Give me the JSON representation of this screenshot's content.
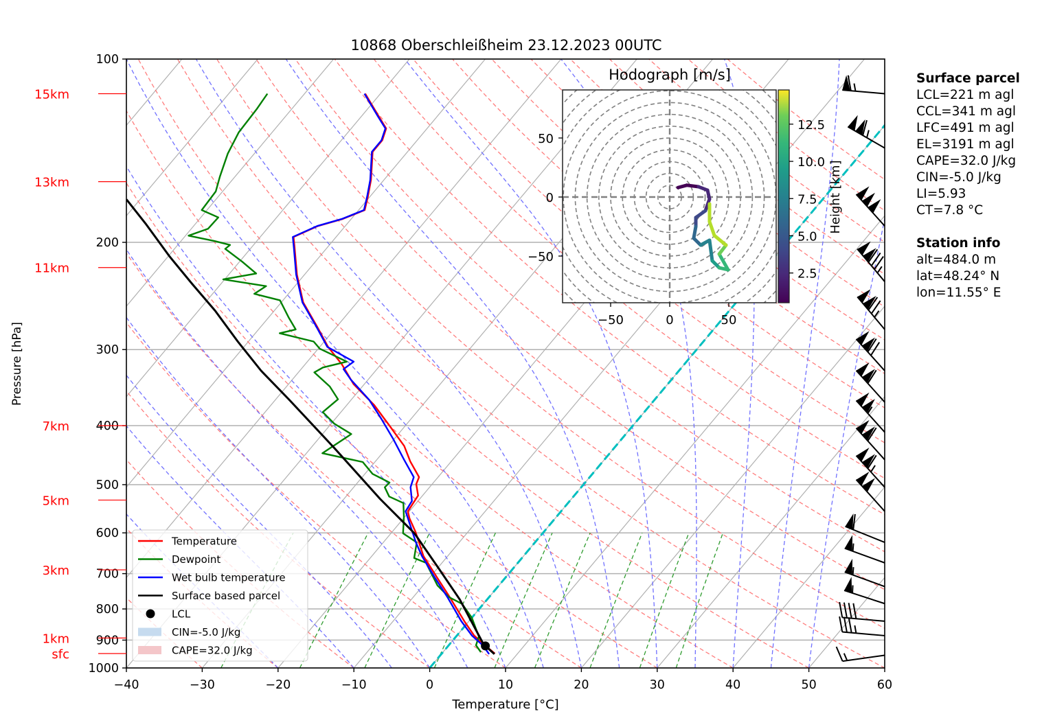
{
  "chart_data": {
    "type": "line",
    "title": "10868 Oberschleißheim 23.12.2023 00UTC",
    "xlabel": "Temperature [°C]",
    "ylabel": "Pressure [hPa]",
    "xlim": [
      -40,
      60
    ],
    "ylim": [
      1000,
      100
    ],
    "yscale": "log",
    "skew": "skew-T log-P",
    "grid": true,
    "x_ticks": [
      -40,
      -30,
      -20,
      -10,
      0,
      10,
      20,
      30,
      40,
      50,
      60
    ],
    "y_ticks": [
      100,
      200,
      300,
      400,
      500,
      600,
      700,
      800,
      900,
      1000
    ],
    "height_markers": [
      {
        "label": "15km",
        "pressure": 114
      },
      {
        "label": "13km",
        "pressure": 159
      },
      {
        "label": "11km",
        "pressure": 220
      },
      {
        "label": "7km",
        "pressure": 400
      },
      {
        "label": "5km",
        "pressure": 530
      },
      {
        "label": "3km",
        "pressure": 690
      },
      {
        "label": "1km",
        "pressure": 893
      },
      {
        "label": "sfc",
        "pressure": 947
      }
    ],
    "series": [
      {
        "name": "Temperature",
        "color": "#ff0000",
        "points": [
          [
            947,
            7.0
          ],
          [
            918,
            4.8
          ],
          [
            885,
            2.3
          ],
          [
            838,
            -0.6
          ],
          [
            765,
            -5.2
          ],
          [
            708,
            -9.2
          ],
          [
            655,
            -13.2
          ],
          [
            598,
            -16.9
          ],
          [
            568,
            -19.2
          ],
          [
            553,
            -20.2
          ],
          [
            521,
            -20.6
          ],
          [
            499,
            -22.1
          ],
          [
            486,
            -22.5
          ],
          [
            458,
            -25.4
          ],
          [
            432,
            -27.9
          ],
          [
            400,
            -32.1
          ],
          [
            370,
            -36.4
          ],
          [
            342,
            -41.4
          ],
          [
            317,
            -45.2
          ],
          [
            297,
            -48.9
          ],
          [
            275,
            -52.6
          ],
          [
            251,
            -57.1
          ],
          [
            226,
            -61.0
          ],
          [
            204,
            -64.3
          ],
          [
            196,
            -65.6
          ],
          [
            188,
            -63.6
          ],
          [
            183,
            -61.1
          ],
          [
            177,
            -59.2
          ],
          [
            168,
            -60.3
          ],
          [
            158,
            -61.7
          ],
          [
            142,
            -64.6
          ],
          [
            136,
            -64.6
          ],
          [
            130,
            -65.4
          ],
          [
            124,
            -67.8
          ],
          [
            114,
            -72.0
          ]
        ]
      },
      {
        "name": "Dewpoint",
        "color": "#008000",
        "points": [
          [
            942,
            5.0
          ],
          [
            918,
            3.6
          ],
          [
            888,
            3.0
          ],
          [
            827,
            0.0
          ],
          [
            785,
            -2.8
          ],
          [
            765,
            -5.3
          ],
          [
            732,
            -8.1
          ],
          [
            672,
            -12.1
          ],
          [
            660,
            -14.2
          ],
          [
            622,
            -15.6
          ],
          [
            601,
            -18.4
          ],
          [
            565,
            -20.1
          ],
          [
            536,
            -21.7
          ],
          [
            523,
            -24.3
          ],
          [
            505,
            -25.9
          ],
          [
            496,
            -25.8
          ],
          [
            480,
            -29.0
          ],
          [
            459,
            -31.6
          ],
          [
            444,
            -37.9
          ],
          [
            413,
            -36.2
          ],
          [
            397,
            -39.6
          ],
          [
            380,
            -42.4
          ],
          [
            362,
            -41.8
          ],
          [
            345,
            -44.3
          ],
          [
            327,
            -47.9
          ],
          [
            321,
            -47.3
          ],
          [
            314,
            -44.8
          ],
          [
            299,
            -49.8
          ],
          [
            291,
            -51.4
          ],
          [
            282,
            -56.8
          ],
          [
            278,
            -55.1
          ],
          [
            266,
            -57.3
          ],
          [
            249,
            -60.4
          ],
          [
            243,
            -64.5
          ],
          [
            236,
            -63.8
          ],
          [
            230,
            -70.2
          ],
          [
            225,
            -66.5
          ],
          [
            215,
            -69.7
          ],
          [
            205,
            -73.3
          ],
          [
            202,
            -73.1
          ],
          [
            199,
            -75.6
          ],
          [
            195,
            -79.6
          ],
          [
            190,
            -77.8
          ],
          [
            182,
            -77.7
          ],
          [
            177,
            -80.7
          ],
          [
            165,
            -80.9
          ],
          [
            156,
            -82.0
          ],
          [
            143,
            -83.5
          ],
          [
            132,
            -84.4
          ],
          [
            121,
            -84.6
          ],
          [
            114,
            -84.9
          ]
        ]
      },
      {
        "name": "Wet bulb temperature",
        "color": "#0000ff",
        "points": [
          [
            949,
            6.3
          ],
          [
            918,
            4.5
          ],
          [
            885,
            2.0
          ],
          [
            838,
            -1.0
          ],
          [
            765,
            -5.5
          ],
          [
            708,
            -9.5
          ],
          [
            655,
            -13.4
          ],
          [
            622,
            -15.7
          ],
          [
            553,
            -20.5
          ],
          [
            532,
            -20.8
          ],
          [
            505,
            -22.5
          ],
          [
            486,
            -23.2
          ],
          [
            455,
            -26.4
          ],
          [
            421,
            -30.1
          ],
          [
            390,
            -33.9
          ],
          [
            363,
            -37.6
          ],
          [
            336,
            -42.3
          ],
          [
            323,
            -44.4
          ],
          [
            314,
            -43.9
          ],
          [
            297,
            -49.0
          ],
          [
            275,
            -52.7
          ],
          [
            251,
            -57.2
          ],
          [
            226,
            -61.1
          ],
          [
            204,
            -64.4
          ],
          [
            196,
            -65.7
          ],
          [
            188,
            -63.7
          ],
          [
            183,
            -61.2
          ],
          [
            177,
            -59.3
          ],
          [
            168,
            -60.4
          ],
          [
            158,
            -61.8
          ],
          [
            142,
            -64.7
          ],
          [
            136,
            -64.7
          ],
          [
            130,
            -65.5
          ],
          [
            124,
            -67.9
          ],
          [
            114,
            -72.1
          ]
        ]
      },
      {
        "name": "Surface based parcel",
        "color": "#000000",
        "points": [
          [
            949,
            7.0
          ],
          [
            920,
            4.9
          ],
          [
            911,
            4.3
          ],
          [
            772,
            -3.6
          ],
          [
            684,
            -10.0
          ],
          [
            601,
            -16.9
          ],
          [
            528,
            -25.2
          ],
          [
            436,
            -36.8
          ],
          [
            362,
            -48.3
          ],
          [
            325,
            -55.1
          ],
          [
            291,
            -61.4
          ],
          [
            259,
            -67.8
          ],
          [
            234,
            -73.8
          ],
          [
            211,
            -79.8
          ],
          [
            187,
            -86.4
          ],
          [
            170,
            -91.8
          ]
        ]
      }
    ],
    "lcl": {
      "label": "LCL",
      "pressure": 920,
      "temperature": 4.9
    },
    "freezing_line": {
      "temperature": 0,
      "color": "#00bfbf"
    },
    "legend": {
      "position": "lower-left",
      "entries": [
        {
          "label": "Temperature",
          "kind": "line",
          "color": "#ff0000"
        },
        {
          "label": "Dewpoint",
          "kind": "line",
          "color": "#008000"
        },
        {
          "label": "Wet bulb temperature",
          "kind": "line",
          "color": "#0000ff"
        },
        {
          "label": "Surface based parcel",
          "kind": "line",
          "color": "#000000"
        },
        {
          "label": "LCL",
          "kind": "marker",
          "color": "#000000"
        },
        {
          "label": "CIN=-5.0 J/kg",
          "kind": "patch",
          "color": "#c6dbef"
        },
        {
          "label": "CAPE=32.0 J/kg",
          "kind": "patch",
          "color": "#f4c6c9"
        }
      ]
    },
    "reference_lines": {
      "isotherms_step": 10,
      "dry_adiabats_T1000": [
        -30,
        -20,
        -10,
        0,
        10,
        20,
        30,
        40,
        50,
        60,
        70,
        80,
        90,
        100,
        110,
        120,
        130,
        140,
        150,
        160,
        170,
        180,
        190,
        200
      ],
      "moist_adiabats_T1000": [
        -20,
        -10,
        -5,
        0,
        5,
        10,
        15,
        20,
        25,
        30,
        35,
        40,
        45,
        50
      ],
      "mixing_ratios_gkg": [
        0.4,
        1,
        2,
        4,
        7,
        10,
        16,
        24,
        32
      ]
    },
    "wind_barbs": {
      "units": "kt",
      "levels": [
        {
          "pressure": 114,
          "direction": 275,
          "speed": 65
        },
        {
          "pressure": 140,
          "direction": 300,
          "speed": 115
        },
        {
          "pressure": 188,
          "direction": 318,
          "speed": 150
        },
        {
          "pressure": 232,
          "direction": 320,
          "speed": 135
        },
        {
          "pressure": 278,
          "direction": 320,
          "speed": 125
        },
        {
          "pressure": 325,
          "direction": 318,
          "speed": 120
        },
        {
          "pressure": 366,
          "direction": 318,
          "speed": 110
        },
        {
          "pressure": 410,
          "direction": 318,
          "speed": 105
        },
        {
          "pressure": 455,
          "direction": 318,
          "speed": 110
        },
        {
          "pressure": 505,
          "direction": 318,
          "speed": 115
        },
        {
          "pressure": 553,
          "direction": 318,
          "speed": 100
        },
        {
          "pressure": 622,
          "direction": 292,
          "speed": 60
        },
        {
          "pressure": 672,
          "direction": 290,
          "speed": 55
        },
        {
          "pressure": 735,
          "direction": 290,
          "speed": 55
        },
        {
          "pressure": 784,
          "direction": 288,
          "speed": 55
        },
        {
          "pressure": 838,
          "direction": 275,
          "speed": 40
        },
        {
          "pressure": 885,
          "direction": 275,
          "speed": 35
        },
        {
          "pressure": 953,
          "direction": 262,
          "speed": 15
        }
      ]
    },
    "hodograph": {
      "title": "Hodograph [m/s]",
      "xlim": [
        -90,
        90
      ],
      "ylim": [
        -90,
        90
      ],
      "x_ticks": [
        -50,
        0,
        50
      ],
      "y_ticks": [
        -50,
        0,
        50
      ],
      "ring_step": 10,
      "colorbar": {
        "label": "Height [km]",
        "ticks": [
          2.5,
          5.0,
          7.5,
          10.0,
          12.5
        ],
        "range": [
          0.5,
          14.8
        ],
        "cmap": "viridis"
      },
      "points": [
        {
          "u": 7,
          "v": 8,
          "h": 0.5
        },
        {
          "u": 14.5,
          "v": 10,
          "h": 1.0
        },
        {
          "u": 24.4,
          "v": 8.7,
          "h": 1.5
        },
        {
          "u": 32,
          "v": 5.8,
          "h": 2.0
        },
        {
          "u": 33.7,
          "v": -1.7,
          "h": 2.3
        },
        {
          "u": 30.2,
          "v": -11.6,
          "h": 3.0
        },
        {
          "u": 22.1,
          "v": -17.4,
          "h": 3.5
        },
        {
          "u": 22.1,
          "v": -25,
          "h": 4.0
        },
        {
          "u": 20.3,
          "v": -34.9,
          "h": 5.0
        },
        {
          "u": 26.2,
          "v": -40.7,
          "h": 6.0
        },
        {
          "u": 33.7,
          "v": -36.6,
          "h": 6.5
        },
        {
          "u": 36,
          "v": -54,
          "h": 7.5
        },
        {
          "u": 41.9,
          "v": -59.9,
          "h": 9.0
        },
        {
          "u": 49.4,
          "v": -61.6,
          "h": 10.0
        },
        {
          "u": 41.9,
          "v": -48.3,
          "h": 11.0
        },
        {
          "u": 47.7,
          "v": -40.7,
          "h": 12.0
        },
        {
          "u": 37.8,
          "v": -32.6,
          "h": 13.0
        },
        {
          "u": 33.7,
          "v": -20.9,
          "h": 13.5
        },
        {
          "u": 33.7,
          "v": -5.8,
          "h": 14.5
        }
      ]
    }
  },
  "info_panel": {
    "surface_parcel": {
      "heading": "Surface parcel",
      "lines": [
        "LCL=221 m agl",
        "CCL=341 m agl",
        "LFC=491 m agl",
        "EL=3191 m agl",
        "CAPE=32.0 J/kg",
        "CIN=-5.0 J/kg",
        "LI=5.93",
        "CT=7.8 °C"
      ]
    },
    "station_info": {
      "heading": "Station info",
      "lines": [
        "alt=484.0 m",
        "lat=48.24° N",
        "lon=11.55° E"
      ]
    }
  }
}
